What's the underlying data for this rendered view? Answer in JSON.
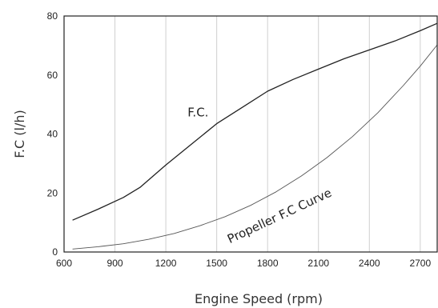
{
  "chart_data": {
    "type": "line",
    "xlabel": "Engine Speed (rpm)",
    "ylabel": "F.C (l/h)",
    "xlim": [
      600,
      2800
    ],
    "ylim": [
      0,
      80
    ],
    "xticks": [
      600,
      900,
      1200,
      1500,
      1800,
      2100,
      2400,
      2700
    ],
    "yticks": [
      0,
      20,
      40,
      60,
      80
    ],
    "grid": "vertical",
    "series": [
      {
        "name": "F.C.",
        "color": "#222222",
        "x": [
          650,
          800,
          950,
          1050,
          1200,
          1350,
          1500,
          1650,
          1800,
          1950,
          2100,
          2250,
          2400,
          2550,
          2700,
          2800
        ],
        "y": [
          10.8,
          14.5,
          18.5,
          22.0,
          29.5,
          36.5,
          43.5,
          49.0,
          54.5,
          58.5,
          62.0,
          65.5,
          68.5,
          71.5,
          75.0,
          77.5
        ]
      },
      {
        "name": "Propeller F.C Curve",
        "color": "#555555",
        "x": [
          650,
          800,
          950,
          1100,
          1250,
          1400,
          1550,
          1700,
          1850,
          2000,
          2150,
          2300,
          2450,
          2600,
          2700,
          2800
        ],
        "y": [
          1.0,
          1.8,
          2.8,
          4.3,
          6.3,
          8.9,
          12.0,
          15.8,
          20.4,
          25.8,
          32.0,
          39.1,
          47.2,
          56.4,
          63.0,
          70.2
        ]
      }
    ],
    "annotations": [
      {
        "text": "F.C.",
        "x": 1390,
        "y": 46,
        "rotate": 0
      },
      {
        "text": "Propeller F.C Curve",
        "x": 1880,
        "y": 11,
        "rotate": -25
      }
    ]
  }
}
